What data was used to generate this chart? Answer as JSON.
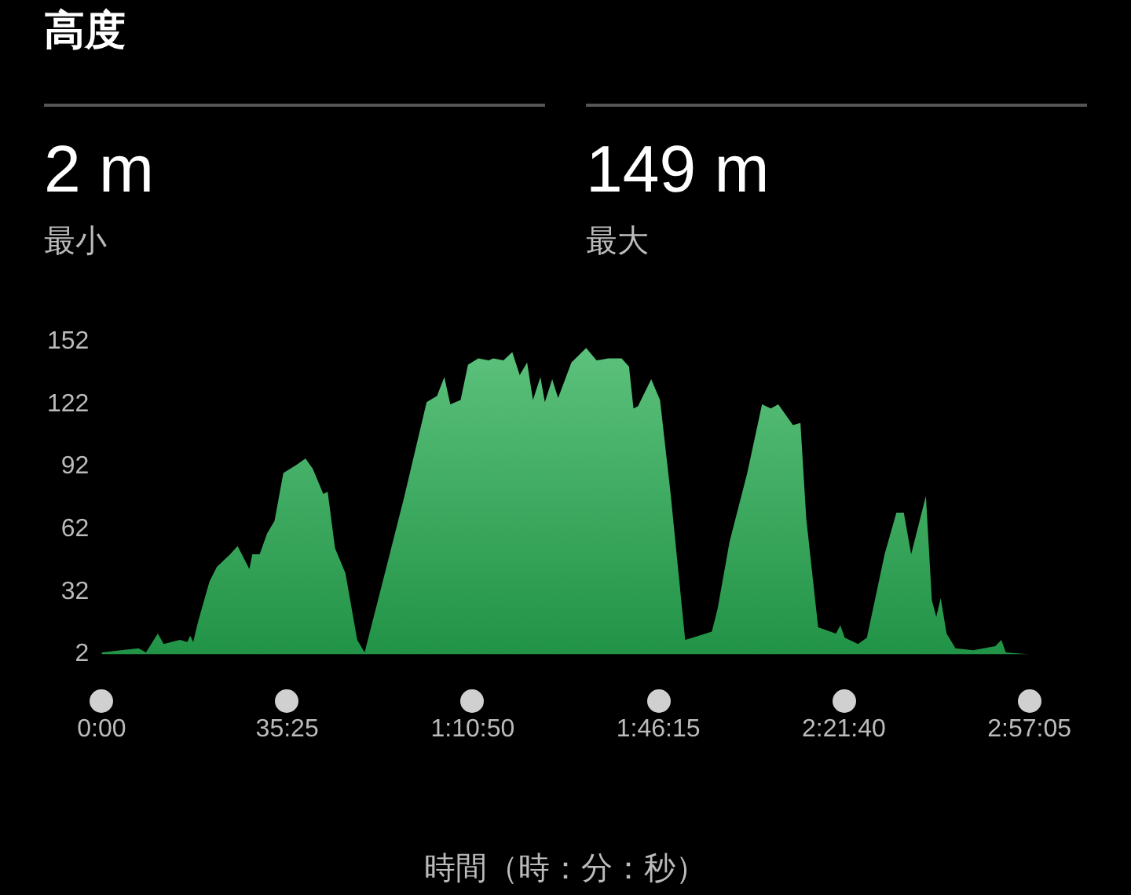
{
  "chart_data": {
    "type": "area",
    "title": "高度",
    "xlabel": "時間（時：分：秒）",
    "annotations": [
      "2 m",
      "最小",
      "149 m",
      "最大"
    ],
    "x": [
      0,
      423,
      508,
      643,
      711,
      897,
      981,
      1015,
      1049,
      1100,
      1235,
      1320,
      1472,
      1557,
      1692,
      1726,
      1810,
      1895,
      1980,
      2081,
      2233,
      2335,
      2419,
      2538,
      2589,
      2673,
      2792,
      2927,
      3012,
      3299,
      3468,
      3722,
      3841,
      3925,
      3993,
      4111,
      4196,
      4314,
      4433,
      4486,
      4602,
      4703,
      4788,
      4873,
      4940,
      5025,
      5076,
      5160,
      5228,
      5380,
      5549,
      5668,
      5803,
      5955,
      6040,
      6091,
      6142,
      6294,
      6395,
      6514,
      6683,
      6768,
      6988,
      7055,
      7191,
      7394,
      7563,
      7664,
      7749,
      7918,
      8003,
      8070,
      8206,
      8409,
      8460,
      8510,
      8663,
      8764,
      8967,
      9102,
      9187,
      9271,
      9440,
      9508,
      9559,
      9609,
      9677,
      9779,
      9982,
      10236,
      10304,
      10355,
      10625
    ],
    "series": [
      {
        "color": "#27ad52",
        "values": [
          3,
          5,
          3,
          12,
          7,
          9,
          8,
          11,
          8,
          17,
          37,
          44,
          50,
          54,
          43,
          50,
          50,
          60,
          66,
          89,
          93,
          96,
          91,
          79,
          80,
          53,
          41,
          9,
          3,
          50,
          78,
          123,
          126,
          135,
          122,
          124,
          141,
          144,
          143,
          144,
          143,
          147,
          136,
          142,
          124,
          135,
          123,
          134,
          125,
          142,
          149,
          143,
          144,
          144,
          140,
          120,
          121,
          134,
          124,
          80,
          9,
          10,
          13,
          24,
          56,
          89,
          122,
          120,
          122,
          112,
          113,
          67,
          15,
          12,
          16,
          10,
          7,
          10,
          50,
          70,
          70,
          50,
          78,
          28,
          20,
          29,
          12,
          5,
          4,
          6,
          9,
          3,
          2
        ]
      }
    ],
    "xlim": [
      0,
      10625
    ],
    "xticks": [
      {
        "value": 0,
        "label": "0:00"
      },
      {
        "value": 2125,
        "label": "35:25"
      },
      {
        "value": 4250,
        "label": "1:10:50"
      },
      {
        "value": 6375,
        "label": "1:46:15"
      },
      {
        "value": 8500,
        "label": "2:21:40"
      },
      {
        "value": 10625,
        "label": "2:57:05"
      }
    ],
    "ylim": [
      2,
      152
    ],
    "yticks": [
      2,
      32,
      62,
      92,
      122,
      152
    ],
    "grid": false,
    "legend": false
  }
}
